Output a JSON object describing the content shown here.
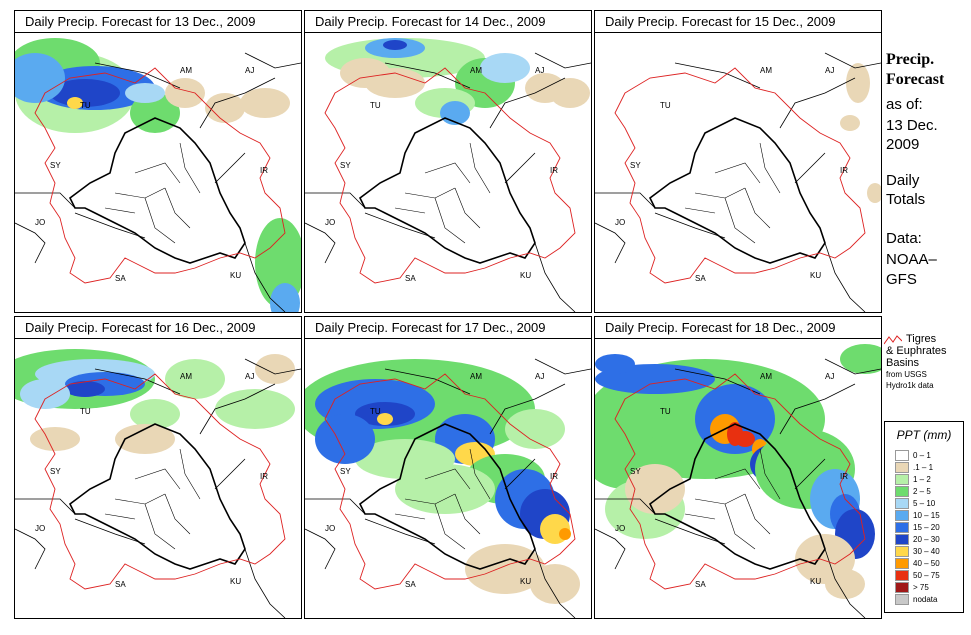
{
  "panels": [
    {
      "title": "Daily Precip. Forecast for  13 Dec., 2009"
    },
    {
      "title": "Daily Precip. Forecast for  14 Dec., 2009"
    },
    {
      "title": "Daily Precip. Forecast for  15 Dec., 2009"
    },
    {
      "title": "Daily Precip. Forecast for  16 Dec., 2009"
    },
    {
      "title": "Daily Precip. Forecast for  17 Dec., 2009"
    },
    {
      "title": "Daily Precip. Forecast for  18 Dec., 2009"
    }
  ],
  "map_labels": {
    "am": "AM",
    "aj": "AJ",
    "tu": "TU",
    "sy": "SY",
    "ir": "IR",
    "jo": "JO",
    "sa": "SA",
    "ku": "KU"
  },
  "sidebar": {
    "heading1": "Precip.",
    "heading2": "Forecast",
    "asof": "as of:",
    "date1": "13 Dec.",
    "date2": "2009",
    "daily": "Daily",
    "totals": "Totals",
    "data": "Data:",
    "source1": "NOAA–",
    "source2": "GFS"
  },
  "basin_key": {
    "line1": "Tigres",
    "line2": "& Euphrates",
    "line3": "Basins",
    "line4": "from USGS",
    "line5": "Hydro1k data"
  },
  "legend": {
    "title": "PPT (mm)",
    "classes": [
      {
        "label": "0 – 1",
        "color": "#ffffff"
      },
      {
        "label": ".1 – 1",
        "color": "#e9d7b6"
      },
      {
        "label": "1 – 2",
        "color": "#b6f0a8"
      },
      {
        "label": "2 – 5",
        "color": "#6edc6e"
      },
      {
        "label": "5 – 10",
        "color": "#a8d8f5"
      },
      {
        "label": "10 – 15",
        "color": "#5aaaf0"
      },
      {
        "label": "15 – 20",
        "color": "#2e6fe6"
      },
      {
        "label": "20 – 30",
        "color": "#1f45c8"
      },
      {
        "label": "30 – 40",
        "color": "#ffd84a"
      },
      {
        "label": "40 – 50",
        "color": "#ff9a00"
      },
      {
        "label": "50 – 75",
        "color": "#e83010"
      },
      {
        "label": "> 75",
        "color": "#a01818"
      },
      {
        "label": "nodata",
        "color": "#c8c8c8"
      }
    ]
  },
  "colors": {
    "basin": "#dd2222",
    "border": "#000000"
  }
}
